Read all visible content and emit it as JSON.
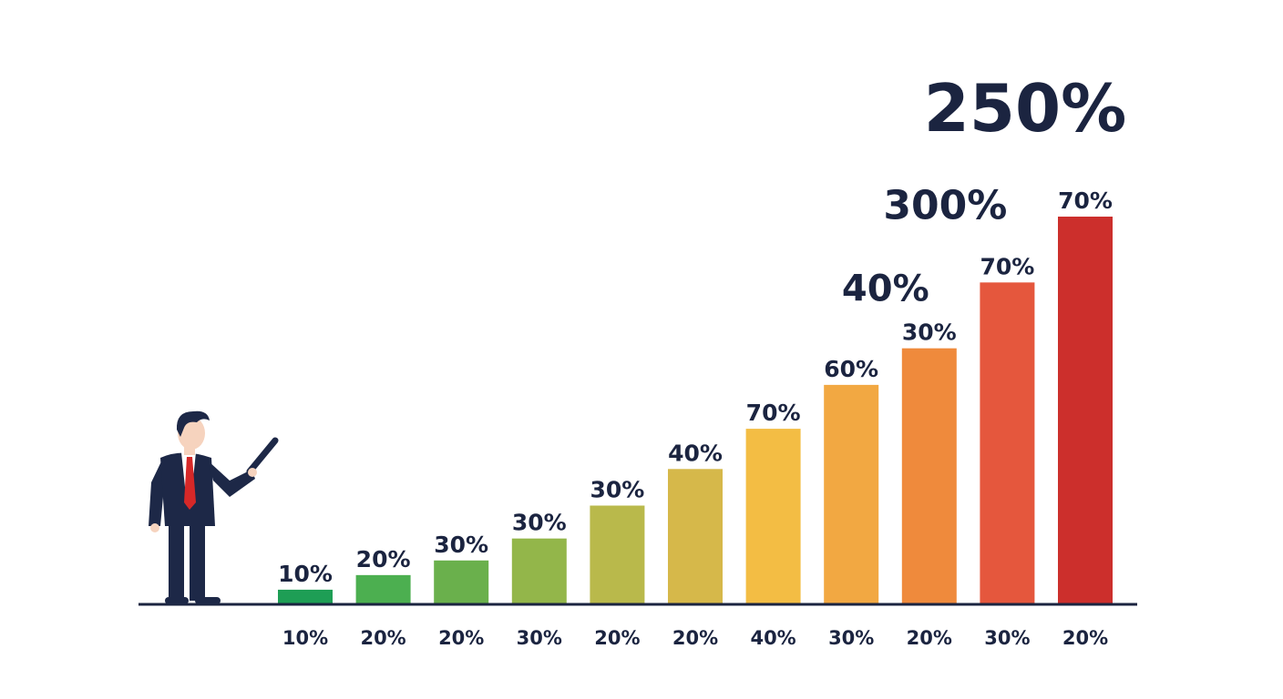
{
  "chart_data": {
    "type": "bar",
    "title": "",
    "xlabel": "",
    "ylabel": "",
    "categories": [
      "10%",
      "20%",
      "20%",
      "30%",
      "20%",
      "20%",
      "40%",
      "30%",
      "20%",
      "30%",
      "20%"
    ],
    "values": [
      4,
      8,
      12,
      18,
      27,
      37,
      48,
      60,
      70,
      88,
      106
    ],
    "bar_labels": [
      "10%",
      "20%",
      "30%",
      "30%",
      "30%",
      "40%",
      "70%",
      "60%",
      "30%",
      "70%",
      "70%"
    ],
    "ylim": [
      0,
      106
    ],
    "grid": false,
    "colors": [
      "#1e9e55",
      "#4caf50",
      "#6ab04c",
      "#93b64a",
      "#b9b94b",
      "#d6b84a",
      "#f3bd44",
      "#f2a842",
      "#ef8a3c",
      "#e5573d",
      "#cc2f2c"
    ],
    "annotations": [
      {
        "text": "40%",
        "bar_index": 8
      },
      {
        "text": "300%",
        "bar_index": 9
      },
      {
        "text": "250%",
        "bar_index": 10
      }
    ]
  },
  "colors": {
    "text": "#1b2440",
    "baseline": "#1b2440",
    "suit": "#1d2847",
    "tie": "#d62828",
    "skin": "#f6d3be"
  },
  "icons": {
    "figure": "businessman-pointer-icon"
  }
}
